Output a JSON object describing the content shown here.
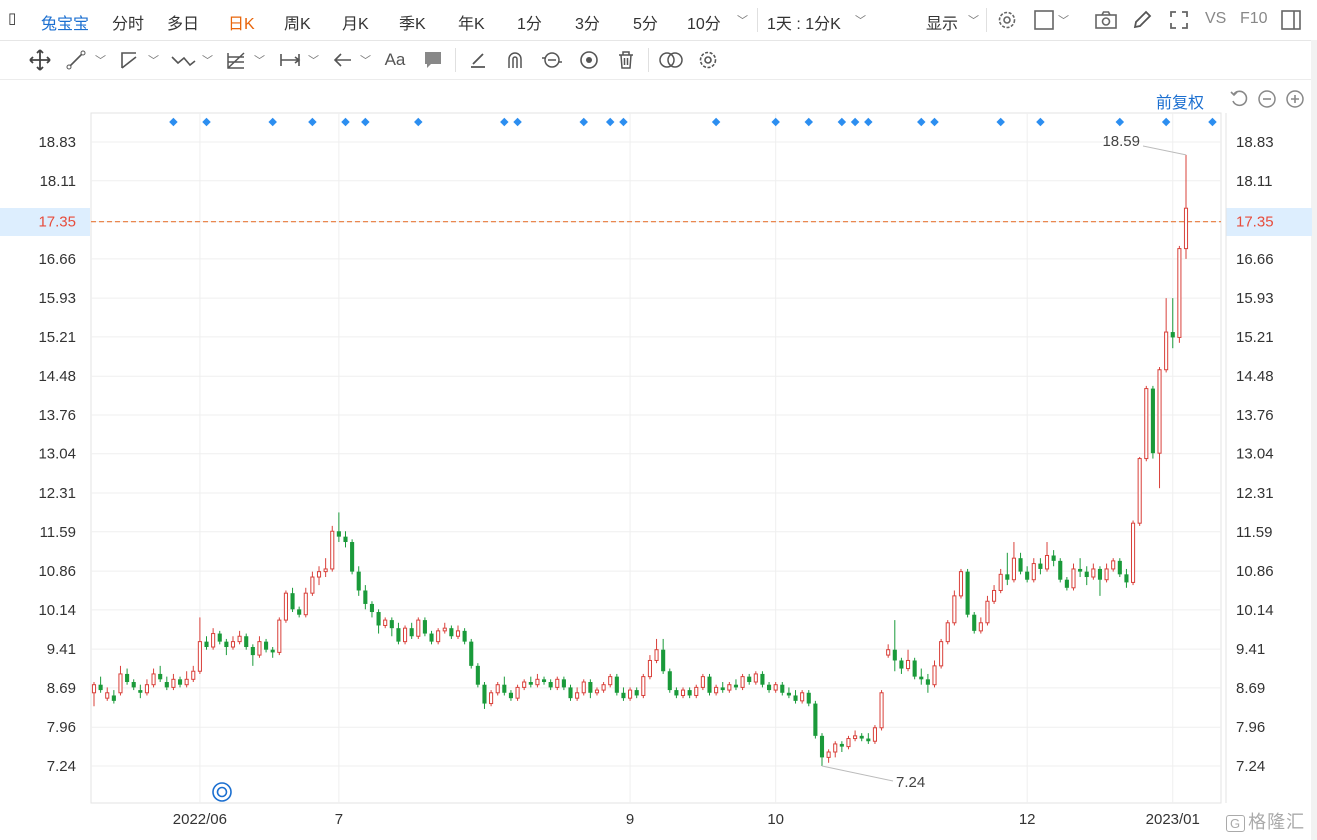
{
  "topbar": {
    "stock_name": "兔宝宝",
    "periods": [
      "分时",
      "多日",
      "日K",
      "周K",
      "月K",
      "季K",
      "年K",
      "1分",
      "3分",
      "5分",
      "10分"
    ],
    "active_period": "日K",
    "range": "1天 : 1分K",
    "display": "显示",
    "vs_label": "VS",
    "f10_label": "F10"
  },
  "toolbar": {
    "tools": [
      "move-icon",
      "line-icon",
      "channel-icon",
      "wave-icon",
      "fib-icon",
      "measure-icon",
      "arrow-icon",
      "text-icon",
      "comment-icon",
      "pen-icon",
      "magnet-icon",
      "lock-icon",
      "eye-icon",
      "trash-icon",
      "compare-icon",
      "settings-icon"
    ],
    "text_tool_label": "Aa"
  },
  "chart_controls": {
    "adjust_label": "前复权",
    "reset_icon": "reset-icon",
    "zoom_out_icon": "zoom-out-icon",
    "zoom_in_icon": "zoom-in-icon"
  },
  "chart_data": {
    "type": "candlestick",
    "y_ticks": [
      "18.83",
      "18.11",
      "17.35",
      "16.66",
      "15.93",
      "15.21",
      "14.48",
      "13.76",
      "13.04",
      "12.31",
      "11.59",
      "10.86",
      "10.14",
      "9.41",
      "8.69",
      "7.96",
      "7.24"
    ],
    "x_ticks": [
      {
        "label": "2022/06",
        "index": 16
      },
      {
        "label": "7",
        "index": 37
      },
      {
        "label": "9",
        "index": 81
      },
      {
        "label": "10",
        "index": 103
      },
      {
        "label": "12",
        "index": 141
      },
      {
        "label": "2023/01",
        "index": 163
      }
    ],
    "current_price": "17.35",
    "high_label": "18.59",
    "low_label": "7.24",
    "ylim": [
      6.7,
      19.4
    ],
    "candles": [
      [
        8.6,
        8.75,
        8.35,
        8.8
      ],
      [
        8.75,
        8.65,
        8.6,
        8.9
      ],
      [
        8.5,
        8.6,
        8.45,
        8.7
      ],
      [
        8.55,
        8.45,
        8.4,
        8.65
      ],
      [
        8.6,
        8.95,
        8.55,
        9.1
      ],
      [
        8.95,
        8.8,
        8.75,
        9.05
      ],
      [
        8.8,
        8.7,
        8.65,
        8.85
      ],
      [
        8.65,
        8.6,
        8.5,
        8.75
      ],
      [
        8.6,
        8.75,
        8.55,
        8.85
      ],
      [
        8.75,
        8.95,
        8.7,
        9.05
      ],
      [
        8.95,
        8.85,
        8.8,
        9.1
      ],
      [
        8.8,
        8.7,
        8.65,
        8.9
      ],
      [
        8.7,
        8.85,
        8.65,
        8.95
      ],
      [
        8.85,
        8.75,
        8.7,
        8.9
      ],
      [
        8.75,
        8.85,
        8.7,
        9.0
      ],
      [
        8.85,
        9.0,
        8.8,
        9.1
      ],
      [
        9.0,
        9.55,
        8.95,
        10.0
      ],
      [
        9.55,
        9.45,
        9.4,
        9.65
      ],
      [
        9.45,
        9.7,
        9.4,
        9.8
      ],
      [
        9.7,
        9.55,
        9.5,
        9.75
      ],
      [
        9.55,
        9.45,
        9.3,
        9.6
      ],
      [
        9.45,
        9.55,
        9.4,
        9.65
      ],
      [
        9.55,
        9.65,
        9.5,
        9.75
      ],
      [
        9.65,
        9.45,
        9.4,
        9.7
      ],
      [
        9.45,
        9.3,
        9.1,
        9.5
      ],
      [
        9.3,
        9.55,
        9.25,
        9.65
      ],
      [
        9.55,
        9.4,
        9.35,
        9.6
      ],
      [
        9.4,
        9.35,
        9.25,
        9.45
      ],
      [
        9.35,
        9.95,
        9.3,
        10.0
      ],
      [
        9.95,
        10.45,
        9.9,
        10.5
      ],
      [
        10.45,
        10.15,
        10.1,
        10.55
      ],
      [
        10.15,
        10.05,
        10.0,
        10.2
      ],
      [
        10.05,
        10.45,
        10.0,
        10.55
      ],
      [
        10.45,
        10.75,
        10.4,
        10.85
      ],
      [
        10.75,
        10.85,
        10.6,
        10.95
      ],
      [
        10.85,
        10.9,
        10.75,
        11.1
      ],
      [
        10.9,
        11.6,
        10.85,
        11.7
      ],
      [
        11.6,
        11.5,
        11.4,
        11.95
      ],
      [
        11.5,
        11.4,
        11.3,
        11.6
      ],
      [
        11.4,
        10.85,
        10.8,
        11.45
      ],
      [
        10.85,
        10.5,
        10.4,
        10.95
      ],
      [
        10.5,
        10.25,
        10.15,
        10.6
      ],
      [
        10.25,
        10.1,
        10.0,
        10.3
      ],
      [
        10.1,
        9.85,
        9.7,
        10.15
      ],
      [
        9.85,
        9.95,
        9.8,
        10.0
      ],
      [
        9.95,
        9.8,
        9.65,
        10.0
      ],
      [
        9.8,
        9.55,
        9.5,
        9.9
      ],
      [
        9.55,
        9.8,
        9.5,
        9.85
      ],
      [
        9.8,
        9.65,
        9.6,
        9.9
      ],
      [
        9.65,
        9.95,
        9.6,
        10.0
      ],
      [
        9.95,
        9.7,
        9.65,
        10.0
      ],
      [
        9.7,
        9.55,
        9.5,
        9.75
      ],
      [
        9.55,
        9.75,
        9.5,
        9.8
      ],
      [
        9.75,
        9.8,
        9.7,
        9.9
      ],
      [
        9.8,
        9.65,
        9.6,
        9.85
      ],
      [
        9.65,
        9.75,
        9.6,
        9.85
      ],
      [
        9.75,
        9.55,
        9.5,
        9.8
      ],
      [
        9.55,
        9.1,
        9.05,
        9.6
      ],
      [
        9.1,
        8.75,
        8.7,
        9.15
      ],
      [
        8.75,
        8.4,
        8.3,
        8.8
      ],
      [
        8.4,
        8.6,
        8.35,
        8.65
      ],
      [
        8.6,
        8.75,
        8.55,
        8.8
      ],
      [
        8.75,
        8.6,
        8.55,
        8.9
      ],
      [
        8.6,
        8.5,
        8.45,
        8.65
      ],
      [
        8.5,
        8.7,
        8.45,
        8.75
      ],
      [
        8.7,
        8.8,
        8.65,
        8.85
      ],
      [
        8.8,
        8.75,
        8.7,
        8.9
      ],
      [
        8.75,
        8.85,
        8.7,
        8.95
      ],
      [
        8.85,
        8.8,
        8.75,
        8.9
      ],
      [
        8.8,
        8.7,
        8.65,
        8.85
      ],
      [
        8.7,
        8.85,
        8.65,
        8.9
      ],
      [
        8.85,
        8.7,
        8.65,
        8.9
      ],
      [
        8.7,
        8.5,
        8.45,
        8.75
      ],
      [
        8.5,
        8.6,
        8.45,
        8.7
      ],
      [
        8.6,
        8.8,
        8.55,
        8.85
      ],
      [
        8.8,
        8.6,
        8.5,
        8.85
      ],
      [
        8.6,
        8.65,
        8.55,
        8.7
      ],
      [
        8.65,
        8.75,
        8.6,
        8.8
      ],
      [
        8.75,
        8.9,
        8.7,
        8.95
      ],
      [
        8.9,
        8.6,
        8.55,
        8.95
      ],
      [
        8.6,
        8.5,
        8.45,
        8.7
      ],
      [
        8.5,
        8.65,
        8.45,
        8.7
      ],
      [
        8.65,
        8.55,
        8.5,
        8.7
      ],
      [
        8.55,
        8.9,
        8.5,
        8.95
      ],
      [
        8.9,
        9.2,
        8.85,
        9.3
      ],
      [
        9.2,
        9.4,
        9.15,
        9.6
      ],
      [
        9.4,
        9.0,
        8.95,
        9.6
      ],
      [
        9.0,
        8.65,
        8.6,
        9.05
      ],
      [
        8.65,
        8.55,
        8.5,
        8.7
      ],
      [
        8.55,
        8.65,
        8.5,
        8.7
      ],
      [
        8.65,
        8.55,
        8.5,
        8.7
      ],
      [
        8.55,
        8.7,
        8.5,
        8.75
      ],
      [
        8.7,
        8.9,
        8.65,
        8.95
      ],
      [
        8.9,
        8.6,
        8.55,
        8.95
      ],
      [
        8.6,
        8.7,
        8.55,
        8.75
      ],
      [
        8.7,
        8.65,
        8.6,
        8.8
      ],
      [
        8.65,
        8.75,
        8.6,
        8.8
      ],
      [
        8.75,
        8.7,
        8.65,
        8.85
      ],
      [
        8.7,
        8.9,
        8.65,
        8.95
      ],
      [
        8.9,
        8.8,
        8.75,
        8.95
      ],
      [
        8.8,
        8.95,
        8.75,
        9.0
      ],
      [
        8.95,
        8.75,
        8.7,
        9.0
      ],
      [
        8.75,
        8.65,
        8.6,
        8.8
      ],
      [
        8.65,
        8.75,
        8.6,
        8.8
      ],
      [
        8.75,
        8.6,
        8.55,
        8.8
      ],
      [
        8.6,
        8.55,
        8.5,
        8.7
      ],
      [
        8.55,
        8.45,
        8.4,
        8.65
      ],
      [
        8.45,
        8.6,
        8.4,
        8.65
      ],
      [
        8.6,
        8.4,
        8.35,
        8.65
      ],
      [
        8.4,
        7.8,
        7.75,
        8.45
      ],
      [
        7.8,
        7.4,
        7.24,
        7.85
      ],
      [
        7.4,
        7.5,
        7.3,
        7.55
      ],
      [
        7.5,
        7.65,
        7.4,
        7.7
      ],
      [
        7.65,
        7.6,
        7.5,
        7.7
      ],
      [
        7.6,
        7.75,
        7.55,
        7.8
      ],
      [
        7.75,
        7.8,
        7.7,
        7.9
      ],
      [
        7.8,
        7.75,
        7.7,
        7.85
      ],
      [
        7.75,
        7.7,
        7.65,
        7.85
      ],
      [
        7.7,
        7.95,
        7.65,
        8.0
      ],
      [
        7.95,
        8.6,
        7.9,
        8.65
      ],
      [
        9.3,
        9.4,
        9.25,
        9.5
      ],
      [
        9.4,
        9.2,
        9.0,
        9.95
      ],
      [
        9.2,
        9.05,
        8.95,
        9.25
      ],
      [
        9.05,
        9.2,
        9.0,
        9.4
      ],
      [
        9.2,
        8.9,
        8.85,
        9.25
      ],
      [
        8.9,
        8.85,
        8.75,
        9.05
      ],
      [
        8.85,
        8.75,
        8.6,
        8.95
      ],
      [
        8.75,
        9.1,
        8.7,
        9.2
      ],
      [
        9.1,
        9.55,
        9.05,
        9.6
      ],
      [
        9.55,
        9.9,
        9.5,
        9.95
      ],
      [
        9.9,
        10.4,
        9.85,
        10.5
      ],
      [
        10.4,
        10.85,
        10.35,
        10.9
      ],
      [
        10.85,
        10.05,
        10.0,
        10.9
      ],
      [
        10.05,
        9.75,
        9.7,
        10.1
      ],
      [
        9.75,
        9.9,
        9.7,
        10.0
      ],
      [
        9.9,
        10.3,
        9.85,
        10.4
      ],
      [
        10.3,
        10.5,
        10.25,
        10.6
      ],
      [
        10.5,
        10.8,
        10.45,
        10.9
      ],
      [
        10.8,
        10.7,
        10.6,
        11.2
      ],
      [
        10.7,
        11.1,
        10.65,
        11.4
      ],
      [
        11.1,
        10.85,
        10.8,
        11.2
      ],
      [
        10.85,
        10.7,
        10.65,
        10.95
      ],
      [
        10.7,
        11.0,
        10.65,
        11.1
      ],
      [
        11.0,
        10.9,
        10.8,
        11.1
      ],
      [
        10.9,
        11.15,
        10.85,
        11.4
      ],
      [
        11.15,
        11.05,
        10.95,
        11.25
      ],
      [
        11.05,
        10.7,
        10.65,
        11.1
      ],
      [
        10.7,
        10.55,
        10.5,
        10.75
      ],
      [
        10.55,
        10.9,
        10.5,
        11.0
      ],
      [
        10.9,
        10.85,
        10.75,
        11.1
      ],
      [
        10.85,
        10.75,
        10.6,
        10.95
      ],
      [
        10.75,
        10.9,
        10.7,
        11.0
      ],
      [
        10.9,
        10.7,
        10.4,
        10.95
      ],
      [
        10.7,
        10.9,
        10.65,
        11.0
      ],
      [
        10.9,
        11.05,
        10.85,
        11.1
      ],
      [
        11.05,
        10.8,
        10.75,
        11.1
      ],
      [
        10.8,
        10.65,
        10.55,
        10.9
      ],
      [
        10.65,
        11.75,
        10.6,
        11.8
      ],
      [
        11.75,
        12.95,
        11.7,
        12.98
      ],
      [
        12.95,
        14.25,
        12.9,
        14.3
      ],
      [
        14.25,
        13.05,
        12.95,
        14.3
      ],
      [
        13.05,
        14.6,
        12.4,
        14.65
      ],
      [
        14.6,
        15.3,
        14.55,
        15.93
      ],
      [
        15.3,
        15.2,
        15.0,
        15.93
      ],
      [
        15.2,
        16.85,
        15.1,
        16.9
      ],
      [
        16.85,
        17.6,
        16.66,
        18.59
      ]
    ]
  },
  "signal_markers": [
    12,
    17,
    27,
    33,
    38,
    41,
    49,
    62,
    64,
    74,
    78,
    80,
    94,
    103,
    108,
    113,
    115,
    117,
    125,
    127,
    137,
    143,
    155,
    162,
    169
  ],
  "footer": {
    "watermark": "格隆汇"
  }
}
